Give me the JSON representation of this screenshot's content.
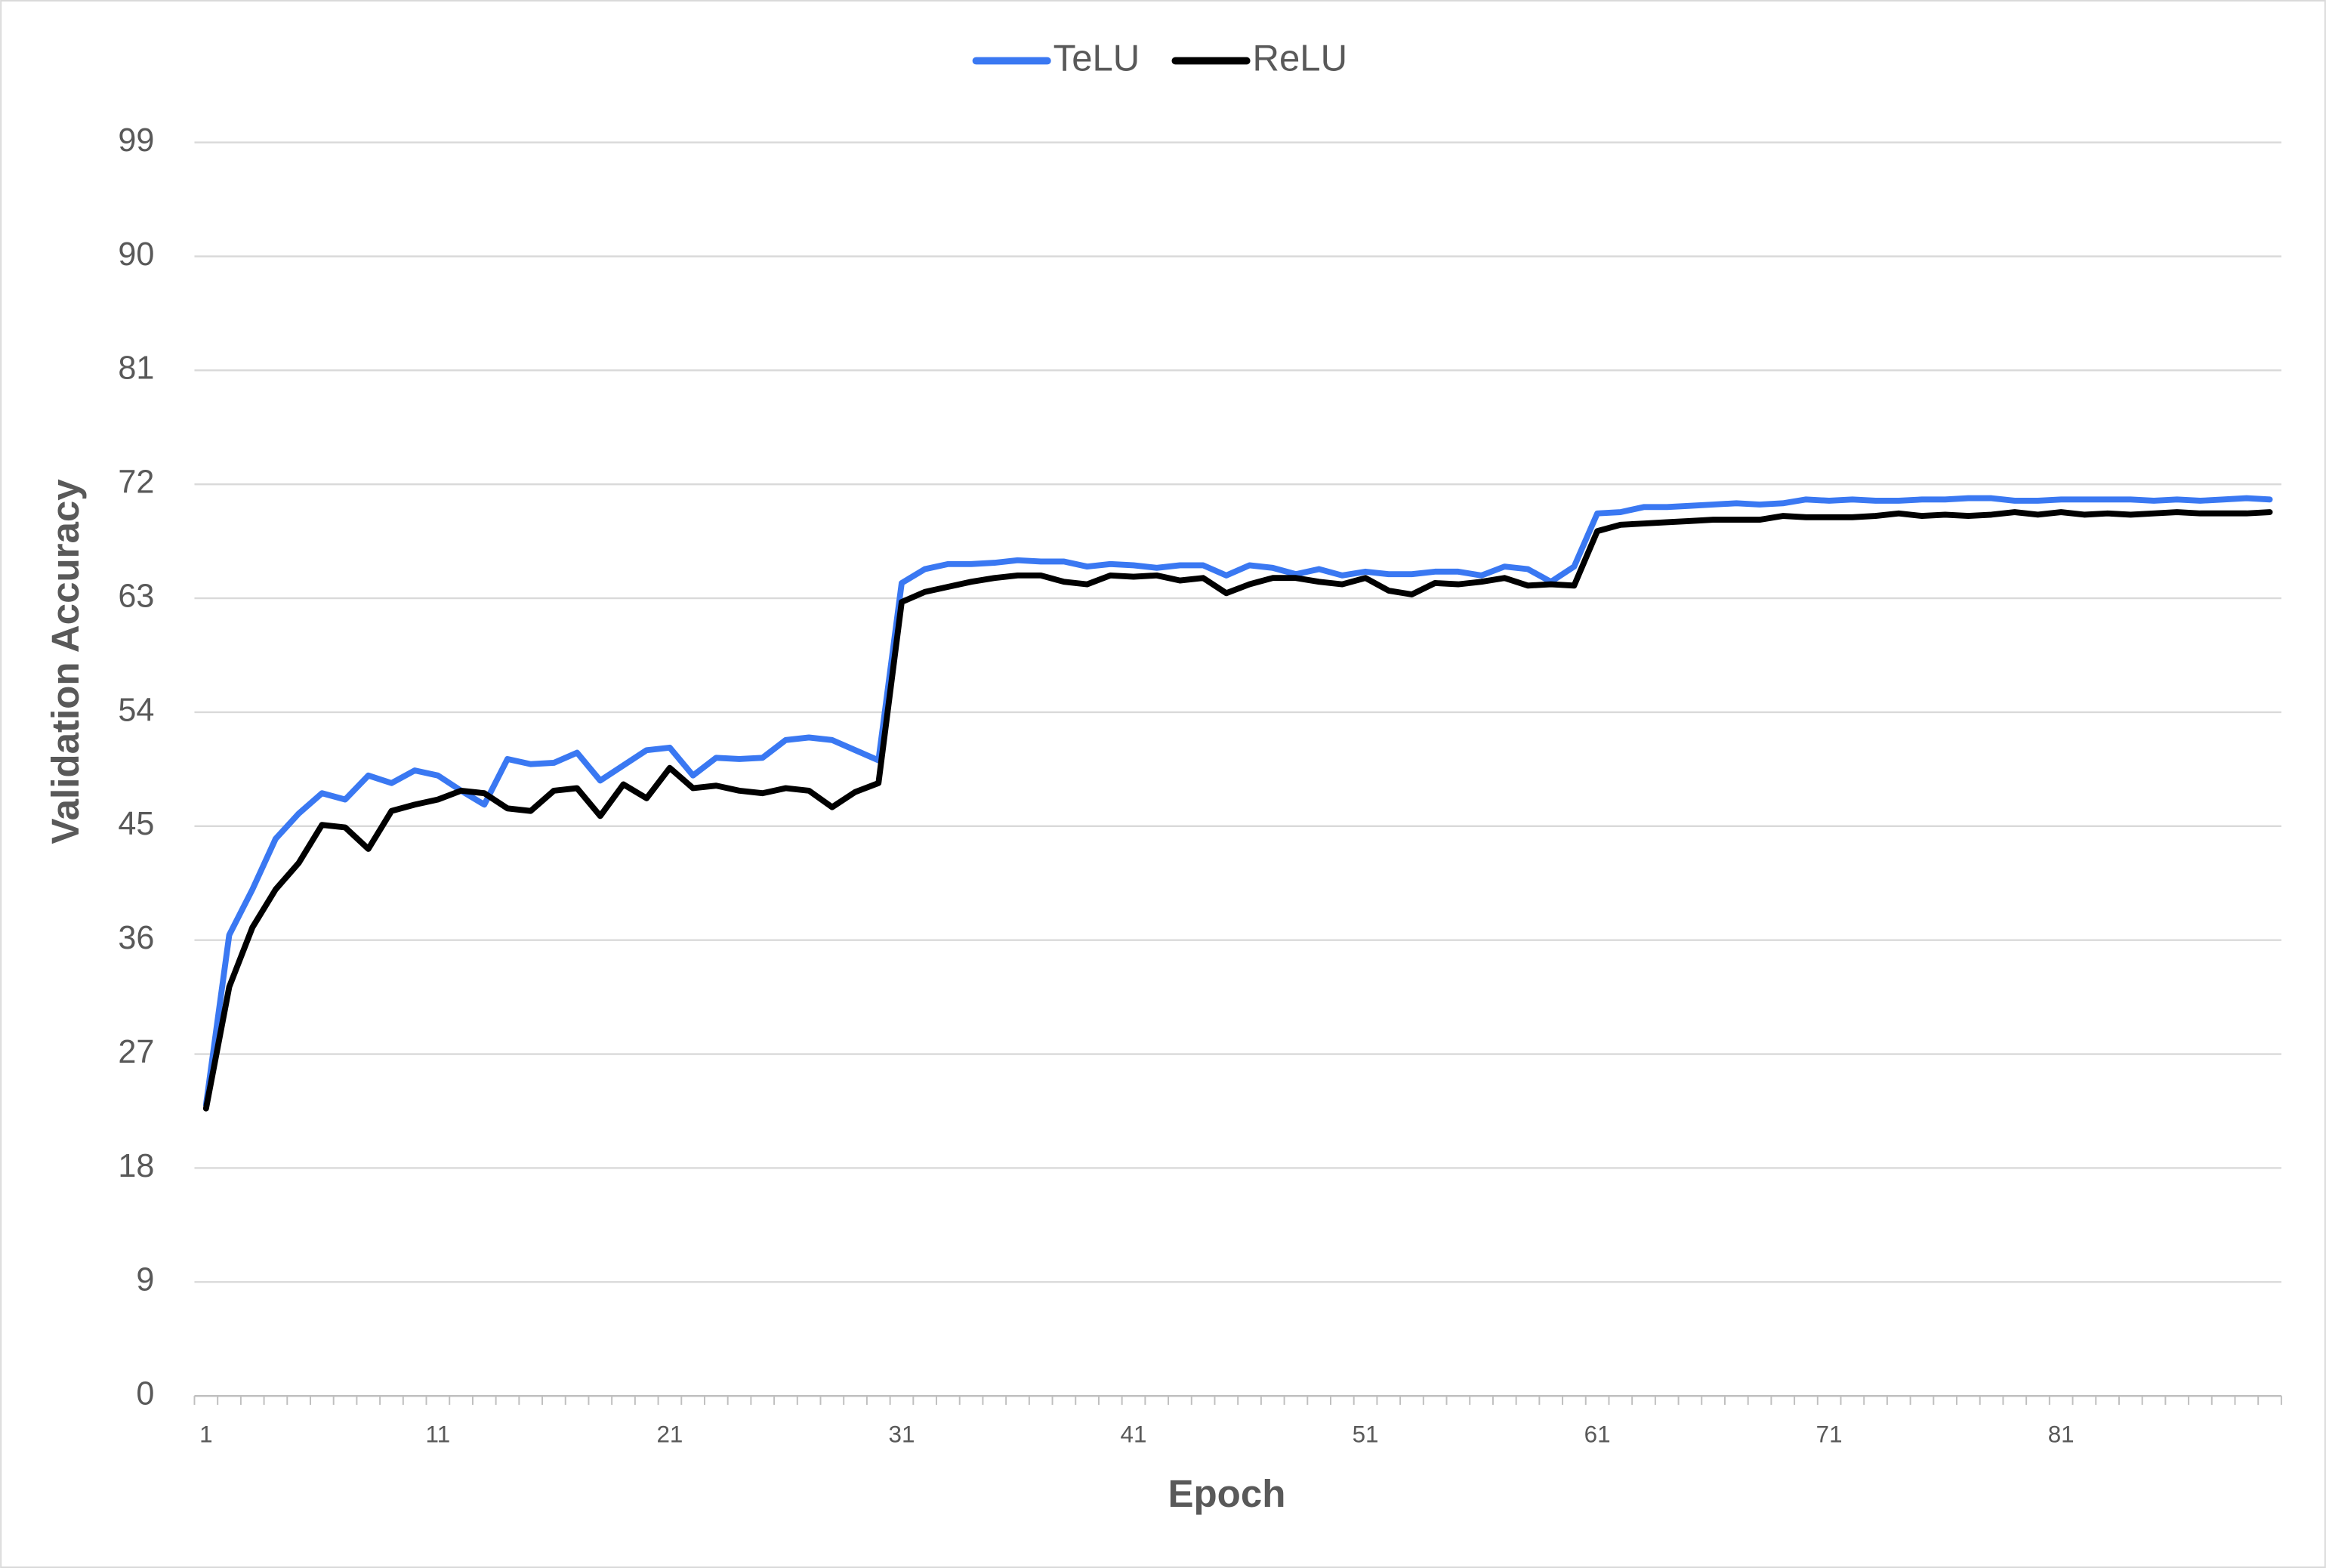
{
  "chart_data": {
    "type": "line",
    "x_label": "Epoch",
    "y_label": "Validation Accuracy",
    "categories": [
      "1",
      null,
      null,
      null,
      null,
      null,
      null,
      null,
      null,
      null,
      "11",
      null,
      null,
      null,
      null,
      null,
      null,
      null,
      null,
      null,
      "21",
      null,
      null,
      null,
      null,
      null,
      null,
      null,
      null,
      null,
      "31",
      null,
      null,
      null,
      null,
      null,
      null,
      null,
      null,
      null,
      "41",
      null,
      null,
      null,
      null,
      null,
      null,
      null,
      null,
      null,
      "51",
      null,
      null,
      null,
      null,
      null,
      null,
      null,
      null,
      null,
      "61",
      null,
      null,
      null,
      null,
      null,
      null,
      null,
      null,
      null,
      "71",
      null,
      null,
      null,
      null,
      null,
      null,
      null,
      null,
      null,
      "81",
      null,
      null,
      null,
      null,
      null,
      null,
      null,
      null,
      null
    ],
    "series": [
      {
        "name": "TeLU",
        "color": "#3a78f2",
        "values": [
          23,
          36.4,
          40,
          44,
          46,
          47.6,
          47.1,
          49,
          48.4,
          49.4,
          49,
          47.8,
          46.7,
          50.3,
          49.9,
          50,
          50.8,
          48.6,
          49.8,
          51,
          51.2,
          49,
          50.4,
          50.3,
          50.4,
          51.8,
          52,
          51.8,
          51,
          50.2,
          64.2,
          65.3,
          65.7,
          65.7,
          65.8,
          66,
          65.9,
          65.9,
          65.5,
          65.7,
          65.6,
          65.4,
          65.6,
          65.6,
          64.8,
          65.6,
          65.4,
          64.9,
          65.3,
          64.8,
          65.1,
          64.9,
          64.9,
          65.1,
          65.1,
          64.8,
          65.5,
          65.3,
          64.3,
          65.5,
          69.7,
          69.8,
          70.2,
          70.2,
          70.3,
          70.4,
          70.5,
          70.4,
          70.5,
          70.8,
          70.7,
          70.8,
          70.7,
          70.7,
          70.8,
          70.8,
          70.9,
          70.9,
          70.7,
          70.7,
          70.8,
          70.8,
          70.8,
          70.8,
          70.7,
          70.8,
          70.7,
          70.8,
          70.9,
          70.8
        ]
      },
      {
        "name": "ReLU",
        "color": "#000000",
        "values": [
          22.7,
          32.3,
          37,
          40,
          42.1,
          45.1,
          44.9,
          43.2,
          46.2,
          46.7,
          47.1,
          47.8,
          47.6,
          46.4,
          46.2,
          47.8,
          48,
          45.8,
          48.3,
          47.2,
          49.6,
          48,
          48.2,
          47.8,
          47.6,
          48,
          47.8,
          46.5,
          47.7,
          48.4,
          62.7,
          63.5,
          63.9,
          64.3,
          64.6,
          64.8,
          64.8,
          64.3,
          64.1,
          64.8,
          64.7,
          64.8,
          64.4,
          64.6,
          63.4,
          64.1,
          64.6,
          64.6,
          64.3,
          64.1,
          64.6,
          63.6,
          63.3,
          64.2,
          64.1,
          64.3,
          64.6,
          64,
          64.1,
          64,
          68.3,
          68.8,
          68.9,
          69,
          69.1,
          69.2,
          69.2,
          69.2,
          69.5,
          69.4,
          69.4,
          69.4,
          69.5,
          69.7,
          69.5,
          69.6,
          69.5,
          69.6,
          69.8,
          69.6,
          69.8,
          69.6,
          69.7,
          69.6,
          69.7,
          69.8,
          69.7,
          69.7,
          69.7,
          69.8
        ]
      }
    ],
    "ylim": [
      0,
      99
    ],
    "yticks": [
      0,
      9,
      18,
      27,
      36,
      45,
      54,
      63,
      72,
      81,
      90,
      99
    ],
    "grid": true,
    "legend": "top"
  }
}
